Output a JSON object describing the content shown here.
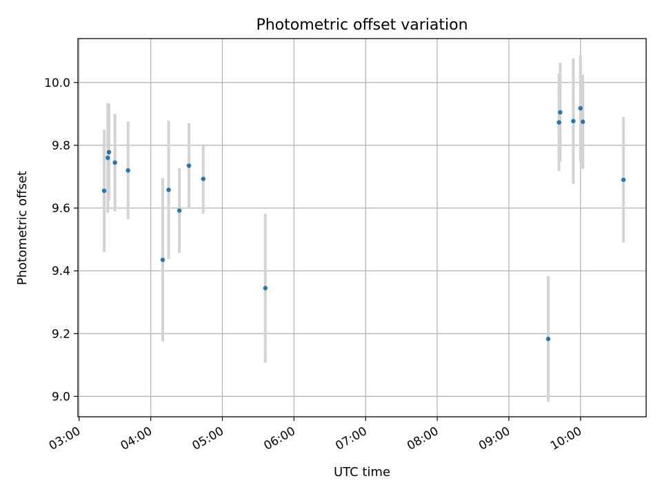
{
  "chart_data": {
    "type": "scatter",
    "title": "Photometric offset variation",
    "xlabel": "UTC time",
    "ylabel": "Photometric offset",
    "x_unit": "UTC time (HH:MM)",
    "xlim": [
      "02:59",
      "10:55"
    ],
    "ylim": [
      8.935,
      10.14
    ],
    "x_ticks": [
      "03:00",
      "04:00",
      "05:00",
      "06:00",
      "07:00",
      "08:00",
      "09:00",
      "10:00"
    ],
    "y_ticks": [
      "9.0",
      "9.2",
      "9.4",
      "9.6",
      "9.8",
      "10.0"
    ],
    "grid": true,
    "marker_color": "#1f77b4",
    "errorbar_color": "#d3d3d3",
    "points": [
      {
        "x": "03:21",
        "y": 9.655,
        "err": 0.195
      },
      {
        "x": "03:24",
        "y": 9.76,
        "err": 0.175
      },
      {
        "x": "03:25",
        "y": 9.778,
        "err": 0.155
      },
      {
        "x": "03:30",
        "y": 9.745,
        "err": 0.155
      },
      {
        "x": "03:41",
        "y": 9.72,
        "err": 0.155
      },
      {
        "x": "04:10",
        "y": 9.435,
        "err": 0.26
      },
      {
        "x": "04:15",
        "y": 9.658,
        "err": 0.22
      },
      {
        "x": "04:24",
        "y": 9.592,
        "err": 0.135
      },
      {
        "x": "04:32",
        "y": 9.735,
        "err": 0.135
      },
      {
        "x": "04:44",
        "y": 9.693,
        "err": 0.11
      },
      {
        "x": "05:36",
        "y": 9.345,
        "err": 0.237
      },
      {
        "x": "09:33",
        "y": 9.183,
        "err": 0.2
      },
      {
        "x": "09:42",
        "y": 9.873,
        "err": 0.155
      },
      {
        "x": "09:43",
        "y": 9.905,
        "err": 0.158
      },
      {
        "x": "09:54",
        "y": 9.877,
        "err": 0.2
      },
      {
        "x": "10:00",
        "y": 9.918,
        "err": 0.17
      },
      {
        "x": "10:02",
        "y": 9.875,
        "err": 0.15
      },
      {
        "x": "10:36",
        "y": 9.69,
        "err": 0.2
      }
    ]
  }
}
